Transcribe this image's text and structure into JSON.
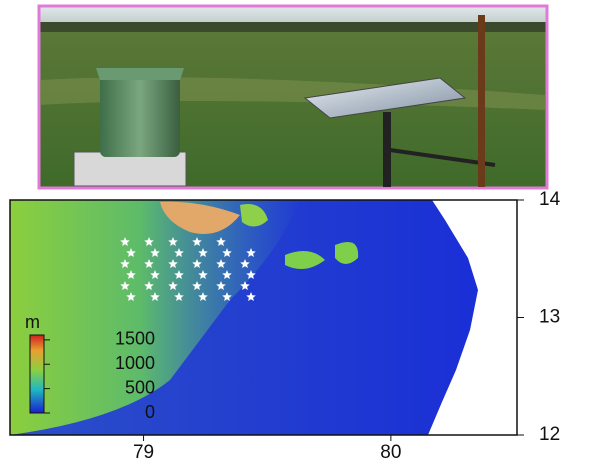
{
  "map": {
    "xlim": [
      78.46,
      80.51
    ],
    "xticks": [
      79,
      80
    ],
    "ylim": [
      12,
      14
    ],
    "yticks": [
      12,
      13,
      14
    ],
    "colorbar": {
      "unit": "m",
      "lim": [
        0,
        1600
      ],
      "ticks": [
        0,
        500,
        1000,
        1500
      ]
    }
  }
}
